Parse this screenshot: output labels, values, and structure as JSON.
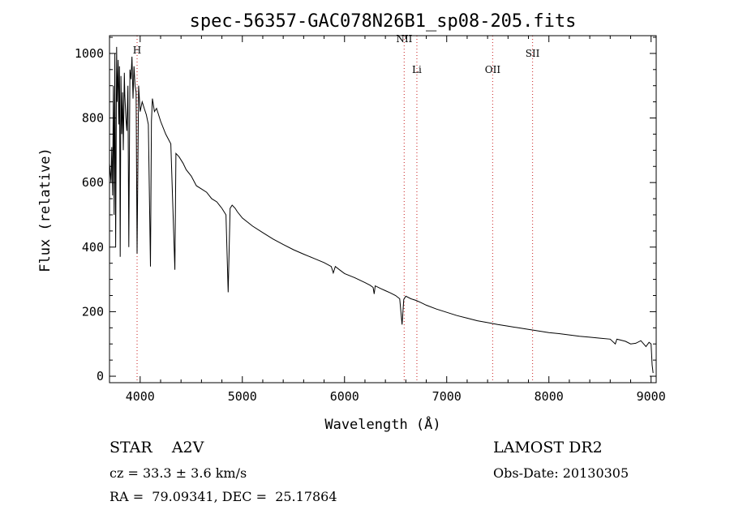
{
  "chart_data": {
    "type": "line",
    "title": "spec-56357-GAC078N26B1_sp08-205.fits",
    "xlabel": "Wavelength (Å)",
    "ylabel": "Flux (relative)",
    "xlim": [
      3700,
      9050
    ],
    "ylim": [
      -20,
      1055
    ],
    "xticks": [
      4000,
      5000,
      6000,
      7000,
      8000,
      9000
    ],
    "yticks": [
      0,
      200,
      400,
      600,
      800,
      1000
    ],
    "grid": false,
    "line_color": "#000000",
    "marker_color": "#d04040",
    "markers": [
      {
        "label": "H",
        "x": 3970,
        "label_y": 1000
      },
      {
        "label": "NII",
        "x": 6584,
        "label_y": 1035
      },
      {
        "label": "Li",
        "x": 6708,
        "label_y": 940
      },
      {
        "label": "OII",
        "x": 7450,
        "label_y": 940
      },
      {
        "label": "SII",
        "x": 7840,
        "label_y": 990
      }
    ],
    "series": [
      {
        "x": [
          3700,
          3715,
          3722,
          3730,
          3738,
          3745,
          3752,
          3760,
          3770,
          3775,
          3785,
          3790,
          3798,
          3805,
          3812,
          3820,
          3828,
          3835,
          3845,
          3850,
          3860,
          3870,
          3880,
          3889,
          3900,
          3910,
          3920,
          3930,
          3940,
          3950,
          3960,
          3970,
          3985,
          4000,
          4020,
          4040,
          4060,
          4080,
          4101,
          4110,
          4120,
          4140,
          4160,
          4180,
          4200,
          4250,
          4300,
          4340,
          4350,
          4380,
          4420,
          4450,
          4500,
          4550,
          4600,
          4650,
          4700,
          4750,
          4800,
          4840,
          4861,
          4880,
          4900,
          4930,
          4950,
          5000,
          5100,
          5200,
          5300,
          5400,
          5500,
          5600,
          5700,
          5800,
          5870,
          5890,
          5910,
          5950,
          6000,
          6100,
          6200,
          6250,
          6280,
          6290,
          6300,
          6350,
          6400,
          6450,
          6500,
          6540,
          6563,
          6580,
          6600,
          6650,
          6700,
          6750,
          6800,
          6900,
          7000,
          7100,
          7200,
          7300,
          7400,
          7500,
          7600,
          7700,
          7800,
          7900,
          8000,
          8100,
          8200,
          8300,
          8400,
          8500,
          8600,
          8650,
          8665,
          8700,
          8750,
          8800,
          8850,
          8900,
          8950,
          8980,
          9000,
          9010,
          9020
        ],
        "y": [
          660,
          600,
          710,
          560,
          900,
          500,
          1000,
          400,
          1020,
          850,
          980,
          780,
          960,
          370,
          930,
          750,
          880,
          700,
          940,
          870,
          800,
          760,
          900,
          400,
          950,
          920,
          990,
          860,
          960,
          900,
          880,
          380,
          900,
          820,
          850,
          830,
          810,
          780,
          340,
          790,
          860,
          820,
          830,
          810,
          790,
          750,
          720,
          330,
          690,
          680,
          660,
          640,
          620,
          590,
          580,
          570,
          550,
          540,
          520,
          500,
          260,
          520,
          530,
          520,
          510,
          490,
          465,
          445,
          425,
          408,
          392,
          378,
          365,
          352,
          340,
          320,
          340,
          330,
          318,
          305,
          290,
          282,
          275,
          255,
          280,
          272,
          265,
          258,
          250,
          240,
          160,
          238,
          248,
          240,
          235,
          228,
          220,
          208,
          198,
          188,
          180,
          172,
          166,
          160,
          155,
          150,
          145,
          140,
          135,
          132,
          128,
          124,
          121,
          118,
          115,
          100,
          115,
          112,
          108,
          100,
          102,
          110,
          92,
          105,
          100,
          35,
          10
        ]
      }
    ],
    "text_lines": {
      "object": "STAR    A2V",
      "cz": "cz = 33.3 ± 3.6 km/s",
      "coords": "RA =  79.09341, DEC =  25.17864",
      "survey": "LAMOST DR2",
      "obs_date": "Obs-Date: 20130305"
    }
  }
}
